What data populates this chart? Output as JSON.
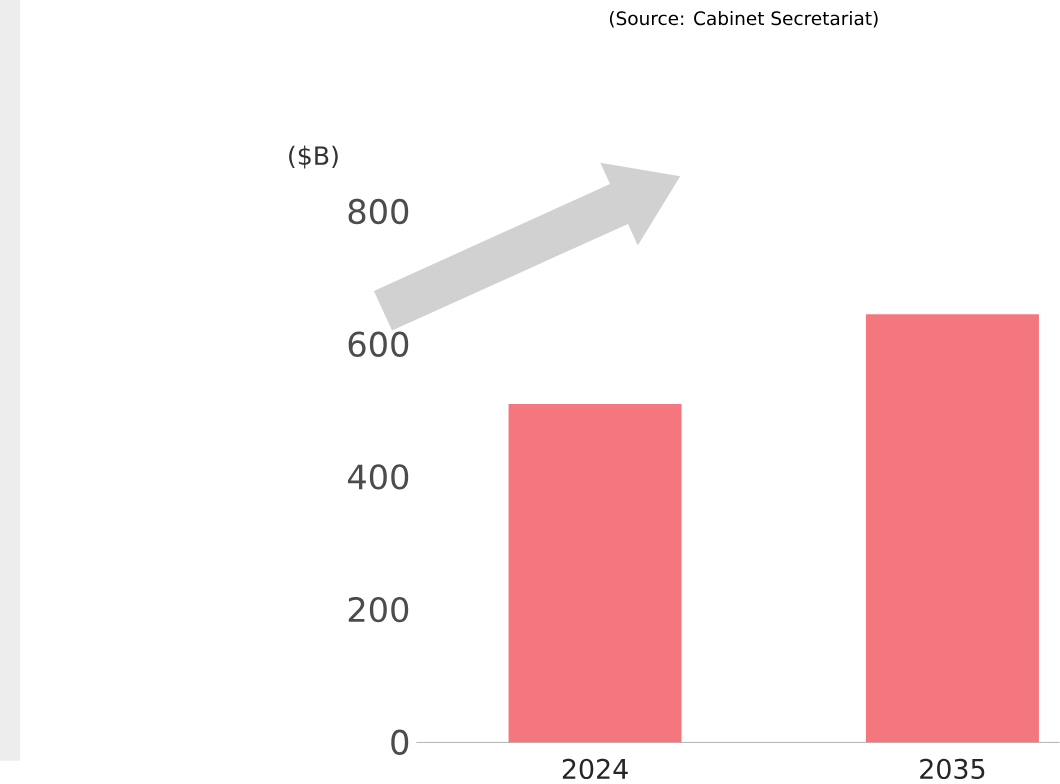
{
  "chart_data": {
    "type": "bar",
    "ylabel": "($B)",
    "annotations": [
      "(Source: Cabinet Secretariat)"
    ],
    "categories": [
      "2024",
      "2035"
    ],
    "values": [
      510,
      645
    ],
    "color": "#f4777f",
    "ylim": [
      0,
      800
    ],
    "yticks": [
      0,
      200,
      400,
      600,
      800
    ]
  }
}
